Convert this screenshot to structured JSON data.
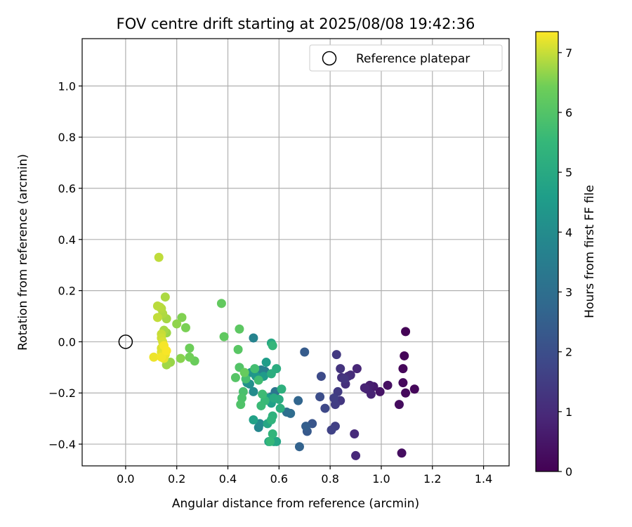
{
  "chart_data": {
    "type": "scatter",
    "title": "FOV centre drift starting at 2025/08/08 19:42:36",
    "xlabel": "Angular distance from reference (arcmin)",
    "ylabel": "Rotation from reference (arcmin)",
    "xlim": [
      -0.17,
      1.5
    ],
    "ylim": [
      -0.485,
      1.185
    ],
    "xticks": [
      0.0,
      0.2,
      0.4,
      0.6,
      0.8,
      1.0,
      1.2,
      1.4
    ],
    "xtick_labels": [
      "0.0",
      "0.2",
      "0.4",
      "0.6",
      "0.8",
      "1.0",
      "1.2",
      "1.4"
    ],
    "yticks": [
      -0.4,
      -0.2,
      0.0,
      0.2,
      0.4,
      0.6,
      0.8,
      1.0
    ],
    "ytick_labels": [
      "−0.4",
      "−0.2",
      "0.0",
      "0.2",
      "0.4",
      "0.6",
      "0.8",
      "1.0"
    ],
    "grid": true,
    "legend": {
      "position": "top-right",
      "entries": [
        {
          "label": "Reference platepar",
          "marker": "open-circle"
        }
      ]
    },
    "reference_point": {
      "x": 0.0,
      "y": 0.0
    },
    "colorbar": {
      "label": "Hours from first FF file",
      "range": [
        0,
        7.35
      ],
      "ticks": [
        0,
        1,
        2,
        3,
        4,
        5,
        6,
        7
      ],
      "tick_labels": [
        "0",
        "1",
        "2",
        "3",
        "4",
        "5",
        "6",
        "7"
      ],
      "colormap": "viridis"
    },
    "points": [
      {
        "x": 1.095,
        "y": 0.04,
        "c": 0.05
      },
      {
        "x": 1.09,
        "y": -0.055,
        "c": 0.1
      },
      {
        "x": 1.085,
        "y": -0.105,
        "c": 0.15
      },
      {
        "x": 1.085,
        "y": -0.16,
        "c": 0.2
      },
      {
        "x": 1.095,
        "y": -0.2,
        "c": 0.2
      },
      {
        "x": 1.13,
        "y": -0.185,
        "c": 0.15
      },
      {
        "x": 1.07,
        "y": -0.245,
        "c": 0.25
      },
      {
        "x": 1.08,
        "y": -0.435,
        "c": 0.3
      },
      {
        "x": 1.025,
        "y": -0.17,
        "c": 0.35
      },
      {
        "x": 0.995,
        "y": -0.195,
        "c": 0.45
      },
      {
        "x": 0.97,
        "y": -0.175,
        "c": 0.6
      },
      {
        "x": 0.955,
        "y": -0.17,
        "c": 0.7
      },
      {
        "x": 0.945,
        "y": -0.185,
        "c": 0.75
      },
      {
        "x": 0.96,
        "y": -0.205,
        "c": 0.8
      },
      {
        "x": 0.935,
        "y": -0.18,
        "c": 0.85
      },
      {
        "x": 0.905,
        "y": -0.105,
        "c": 0.9
      },
      {
        "x": 0.9,
        "y": -0.445,
        "c": 0.95
      },
      {
        "x": 0.895,
        "y": -0.36,
        "c": 1.0
      },
      {
        "x": 0.88,
        "y": -0.13,
        "c": 1.05
      },
      {
        "x": 0.87,
        "y": -0.135,
        "c": 1.1
      },
      {
        "x": 0.86,
        "y": -0.165,
        "c": 1.15
      },
      {
        "x": 0.845,
        "y": -0.14,
        "c": 1.2
      },
      {
        "x": 0.84,
        "y": -0.105,
        "c": 1.25
      },
      {
        "x": 0.855,
        "y": -0.145,
        "c": 1.3
      },
      {
        "x": 0.84,
        "y": -0.23,
        "c": 1.35
      },
      {
        "x": 0.825,
        "y": -0.05,
        "c": 1.4
      },
      {
        "x": 0.83,
        "y": -0.195,
        "c": 1.45
      },
      {
        "x": 0.82,
        "y": -0.245,
        "c": 1.5
      },
      {
        "x": 0.815,
        "y": -0.22,
        "c": 1.55
      },
      {
        "x": 0.82,
        "y": -0.33,
        "c": 1.6
      },
      {
        "x": 0.805,
        "y": -0.345,
        "c": 1.65
      },
      {
        "x": 0.78,
        "y": -0.26,
        "c": 1.8
      },
      {
        "x": 0.765,
        "y": -0.135,
        "c": 1.9
      },
      {
        "x": 0.76,
        "y": -0.215,
        "c": 2.0
      },
      {
        "x": 0.73,
        "y": -0.32,
        "c": 2.2
      },
      {
        "x": 0.71,
        "y": -0.35,
        "c": 2.3
      },
      {
        "x": 0.7,
        "y": -0.04,
        "c": 2.4
      },
      {
        "x": 0.705,
        "y": -0.33,
        "c": 2.5
      },
      {
        "x": 0.68,
        "y": -0.41,
        "c": 2.6
      },
      {
        "x": 0.675,
        "y": -0.23,
        "c": 2.7
      },
      {
        "x": 0.645,
        "y": -0.28,
        "c": 2.9
      },
      {
        "x": 0.63,
        "y": -0.275,
        "c": 3.0
      },
      {
        "x": 0.585,
        "y": -0.195,
        "c": 3.2
      },
      {
        "x": 0.57,
        "y": -0.215,
        "c": 3.4
      },
      {
        "x": 0.545,
        "y": -0.115,
        "c": 3.5
      },
      {
        "x": 0.53,
        "y": -0.11,
        "c": 3.6
      },
      {
        "x": 0.5,
        "y": 0.015,
        "c": 3.7
      },
      {
        "x": 0.52,
        "y": -0.335,
        "c": 3.8
      },
      {
        "x": 0.525,
        "y": -0.32,
        "c": 3.9
      },
      {
        "x": 0.5,
        "y": -0.195,
        "c": 4.0
      },
      {
        "x": 0.485,
        "y": -0.165,
        "c": 4.1
      },
      {
        "x": 0.475,
        "y": -0.16,
        "c": 4.2
      },
      {
        "x": 0.49,
        "y": -0.12,
        "c": 4.3
      },
      {
        "x": 0.51,
        "y": -0.135,
        "c": 4.4
      },
      {
        "x": 0.54,
        "y": -0.135,
        "c": 4.5
      },
      {
        "x": 0.55,
        "y": -0.08,
        "c": 4.55
      },
      {
        "x": 0.555,
        "y": -0.22,
        "c": 4.6
      },
      {
        "x": 0.57,
        "y": -0.24,
        "c": 4.65
      },
      {
        "x": 0.5,
        "y": -0.305,
        "c": 4.7
      },
      {
        "x": 0.56,
        "y": -0.39,
        "c": 4.75
      },
      {
        "x": 0.58,
        "y": -0.39,
        "c": 4.8
      },
      {
        "x": 0.59,
        "y": -0.39,
        "c": 4.85
      },
      {
        "x": 0.555,
        "y": -0.32,
        "c": 4.9
      },
      {
        "x": 0.57,
        "y": -0.005,
        "c": 4.95
      },
      {
        "x": 0.58,
        "y": -0.22,
        "c": 5.0
      },
      {
        "x": 0.6,
        "y": -0.225,
        "c": 5.05
      },
      {
        "x": 0.59,
        "y": -0.105,
        "c": 5.1
      },
      {
        "x": 0.57,
        "y": -0.125,
        "c": 5.15
      },
      {
        "x": 0.605,
        "y": -0.26,
        "c": 5.2
      },
      {
        "x": 0.61,
        "y": -0.185,
        "c": 5.25
      },
      {
        "x": 0.575,
        "y": -0.29,
        "c": 5.3
      },
      {
        "x": 0.57,
        "y": -0.305,
        "c": 5.35
      },
      {
        "x": 0.575,
        "y": -0.36,
        "c": 5.4
      },
      {
        "x": 0.575,
        "y": -0.015,
        "c": 5.45
      },
      {
        "x": 0.565,
        "y": -0.39,
        "c": 5.5
      },
      {
        "x": 0.545,
        "y": -0.23,
        "c": 5.55
      },
      {
        "x": 0.53,
        "y": -0.25,
        "c": 5.6
      },
      {
        "x": 0.535,
        "y": -0.205,
        "c": 5.65
      },
      {
        "x": 0.52,
        "y": -0.15,
        "c": 5.7
      },
      {
        "x": 0.505,
        "y": -0.105,
        "c": 5.75
      },
      {
        "x": 0.47,
        "y": -0.145,
        "c": 5.8
      },
      {
        "x": 0.46,
        "y": -0.195,
        "c": 5.85
      },
      {
        "x": 0.455,
        "y": -0.22,
        "c": 5.9
      },
      {
        "x": 0.45,
        "y": -0.245,
        "c": 5.95
      },
      {
        "x": 0.445,
        "y": -0.1,
        "c": 6.0
      },
      {
        "x": 0.43,
        "y": -0.14,
        "c": 6.05
      },
      {
        "x": 0.44,
        "y": -0.03,
        "c": 6.1
      },
      {
        "x": 0.445,
        "y": 0.05,
        "c": 6.15
      },
      {
        "x": 0.385,
        "y": 0.02,
        "c": 6.2
      },
      {
        "x": 0.375,
        "y": 0.15,
        "c": 6.25
      },
      {
        "x": 0.465,
        "y": -0.12,
        "c": 6.3
      },
      {
        "x": 0.27,
        "y": -0.075,
        "c": 6.35
      },
      {
        "x": 0.25,
        "y": -0.025,
        "c": 6.4
      },
      {
        "x": 0.25,
        "y": -0.06,
        "c": 6.45
      },
      {
        "x": 0.235,
        "y": 0.055,
        "c": 6.5
      },
      {
        "x": 0.22,
        "y": 0.095,
        "c": 6.55
      },
      {
        "x": 0.215,
        "y": -0.065,
        "c": 6.6
      },
      {
        "x": 0.2,
        "y": 0.07,
        "c": 6.65
      },
      {
        "x": 0.175,
        "y": -0.08,
        "c": 6.7
      },
      {
        "x": 0.16,
        "y": 0.035,
        "c": 6.72
      },
      {
        "x": 0.16,
        "y": -0.09,
        "c": 6.75
      },
      {
        "x": 0.16,
        "y": 0.09,
        "c": 6.78
      },
      {
        "x": 0.15,
        "y": 0.045,
        "c": 6.8
      },
      {
        "x": 0.155,
        "y": 0.175,
        "c": 6.82
      },
      {
        "x": 0.145,
        "y": 0.11,
        "c": 6.85
      },
      {
        "x": 0.14,
        "y": 0.13,
        "c": 6.88
      },
      {
        "x": 0.135,
        "y": 0.135,
        "c": 6.9
      },
      {
        "x": 0.125,
        "y": 0.14,
        "c": 6.92
      },
      {
        "x": 0.13,
        "y": 0.33,
        "c": 6.95
      },
      {
        "x": 0.125,
        "y": 0.095,
        "c": 6.97
      },
      {
        "x": 0.14,
        "y": 0.03,
        "c": 7.0
      },
      {
        "x": 0.14,
        "y": 0.015,
        "c": 7.05
      },
      {
        "x": 0.145,
        "y": 0.0,
        "c": 7.1
      },
      {
        "x": 0.14,
        "y": -0.025,
        "c": 7.12
      },
      {
        "x": 0.14,
        "y": -0.04,
        "c": 7.15
      },
      {
        "x": 0.145,
        "y": -0.05,
        "c": 7.18
      },
      {
        "x": 0.15,
        "y": -0.065,
        "c": 7.2
      },
      {
        "x": 0.155,
        "y": -0.05,
        "c": 7.22
      },
      {
        "x": 0.11,
        "y": -0.06,
        "c": 7.25
      },
      {
        "x": 0.14,
        "y": -0.06,
        "c": 7.28
      },
      {
        "x": 0.15,
        "y": -0.015,
        "c": 7.3
      },
      {
        "x": 0.16,
        "y": -0.035,
        "c": 7.32
      }
    ]
  }
}
